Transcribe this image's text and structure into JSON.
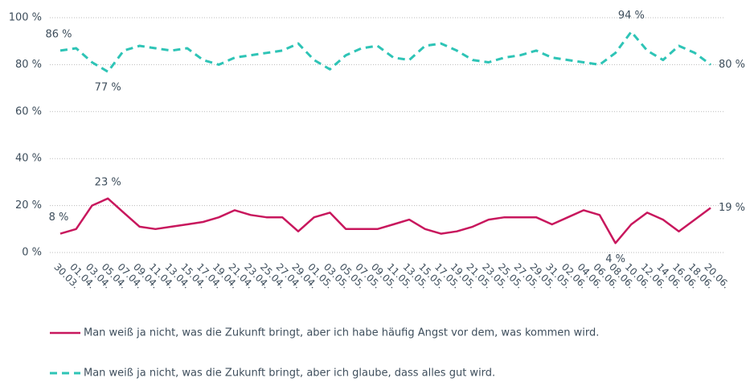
{
  "chart_data": {
    "type": "line",
    "categories": [
      "30.03.",
      "01.04.",
      "03.04.",
      "05.04.",
      "07.04.",
      "09.04.",
      "11.04.",
      "13.04.",
      "15.04.",
      "17.04.",
      "19.04.",
      "21.04.",
      "23.04.",
      "25.04.",
      "27.04.",
      "29.04.",
      "01.05.",
      "03.05.",
      "05.05.",
      "07.05.",
      "09.05.",
      "11.05.",
      "13.05.",
      "15.05.",
      "17.05.",
      "19.05.",
      "21.05.",
      "23.05.",
      "25.05.",
      "27.05.",
      "29.05.",
      "31.05.",
      "02.06.",
      "04.06.",
      "06.06.",
      "08.06.",
      "10.06.",
      "12.06.",
      "14.06.",
      "16.06.",
      "18.06.",
      "20.06."
    ],
    "series": [
      {
        "name": "Man weiß ja nicht, was die Zukunft bringt, aber ich habe häufig Angst vor dem, was kommen wird.",
        "color": "#c8175d",
        "dash": false,
        "values": [
          8,
          10,
          20,
          23,
          17,
          11,
          10,
          11,
          12,
          13,
          15,
          18,
          16,
          15,
          15,
          9,
          15,
          17,
          10,
          10,
          10,
          12,
          14,
          10,
          8,
          9,
          11,
          14,
          15,
          15,
          15,
          12,
          15,
          18,
          16,
          4,
          12,
          17,
          14,
          9,
          14,
          19
        ],
        "value_labels": [
          "8 %",
          null,
          null,
          "23 %",
          null,
          null,
          null,
          null,
          null,
          null,
          null,
          null,
          null,
          null,
          null,
          null,
          null,
          null,
          null,
          null,
          null,
          null,
          null,
          null,
          null,
          null,
          null,
          null,
          null,
          null,
          null,
          null,
          null,
          null,
          null,
          "4 %",
          null,
          null,
          null,
          null,
          null,
          "19 %"
        ]
      },
      {
        "name": "Man weiß ja nicht, was die Zukunft bringt, aber ich glaube, dass alles gut wird.",
        "color": "#2ec4b6",
        "dash": true,
        "values": [
          86,
          87,
          81,
          77,
          86,
          88,
          87,
          86,
          87,
          82,
          80,
          83,
          84,
          85,
          86,
          89,
          82,
          78,
          84,
          87,
          88,
          83,
          82,
          88,
          89,
          86,
          82,
          81,
          83,
          84,
          86,
          83,
          82,
          81,
          80,
          85,
          94,
          86,
          82,
          88,
          85,
          80
        ],
        "value_labels": [
          "86 %",
          null,
          null,
          "77 %",
          null,
          null,
          null,
          null,
          null,
          null,
          null,
          null,
          null,
          null,
          null,
          null,
          null,
          null,
          null,
          null,
          null,
          null,
          null,
          null,
          null,
          null,
          null,
          null,
          null,
          null,
          null,
          null,
          null,
          null,
          null,
          null,
          "94 %",
          null,
          null,
          null,
          null,
          "80 %"
        ]
      }
    ],
    "ylim": [
      0,
      100
    ],
    "yticks": [
      {
        "value": 0,
        "label": "0 %"
      },
      {
        "value": 20,
        "label": "20 %"
      },
      {
        "value": 40,
        "label": "40 %"
      },
      {
        "value": 60,
        "label": "60 %"
      },
      {
        "value": 80,
        "label": "80 %"
      },
      {
        "value": 100,
        "label": "100 %"
      }
    ],
    "grid": true,
    "legend": "bottom"
  }
}
